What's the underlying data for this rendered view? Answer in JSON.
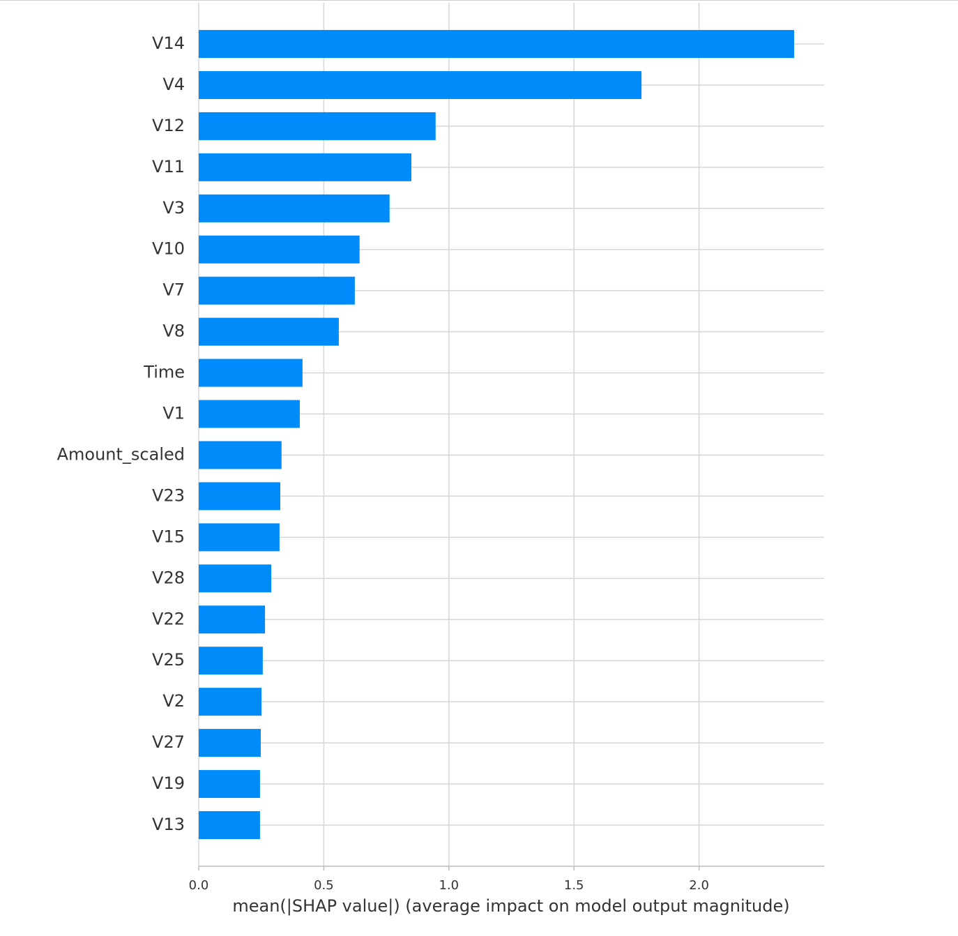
{
  "chart_data": {
    "type": "barh",
    "xlabel": "mean(|SHAP value|) (average impact on model output magnitude)",
    "categories": [
      "V14",
      "V4",
      "V12",
      "V11",
      "V3",
      "V10",
      "V7",
      "V8",
      "Time",
      "V1",
      "Amount_scaled",
      "V23",
      "V15",
      "V28",
      "V22",
      "V25",
      "V2",
      "V27",
      "V19",
      "V13"
    ],
    "values": [
      2.38,
      1.77,
      0.947,
      0.85,
      0.763,
      0.643,
      0.624,
      0.56,
      0.415,
      0.404,
      0.331,
      0.326,
      0.323,
      0.29,
      0.265,
      0.256,
      0.251,
      0.248,
      0.245,
      0.245
    ],
    "color": "#008bfb",
    "xlim": [
      0,
      2.5
    ],
    "xticks": [
      {
        "value": 0,
        "label": "0.0"
      },
      0.5,
      {
        "value": 1,
        "label": "1.0"
      },
      1.5,
      {
        "value": 2,
        "label": "2.0"
      }
    ],
    "grid": true
  }
}
